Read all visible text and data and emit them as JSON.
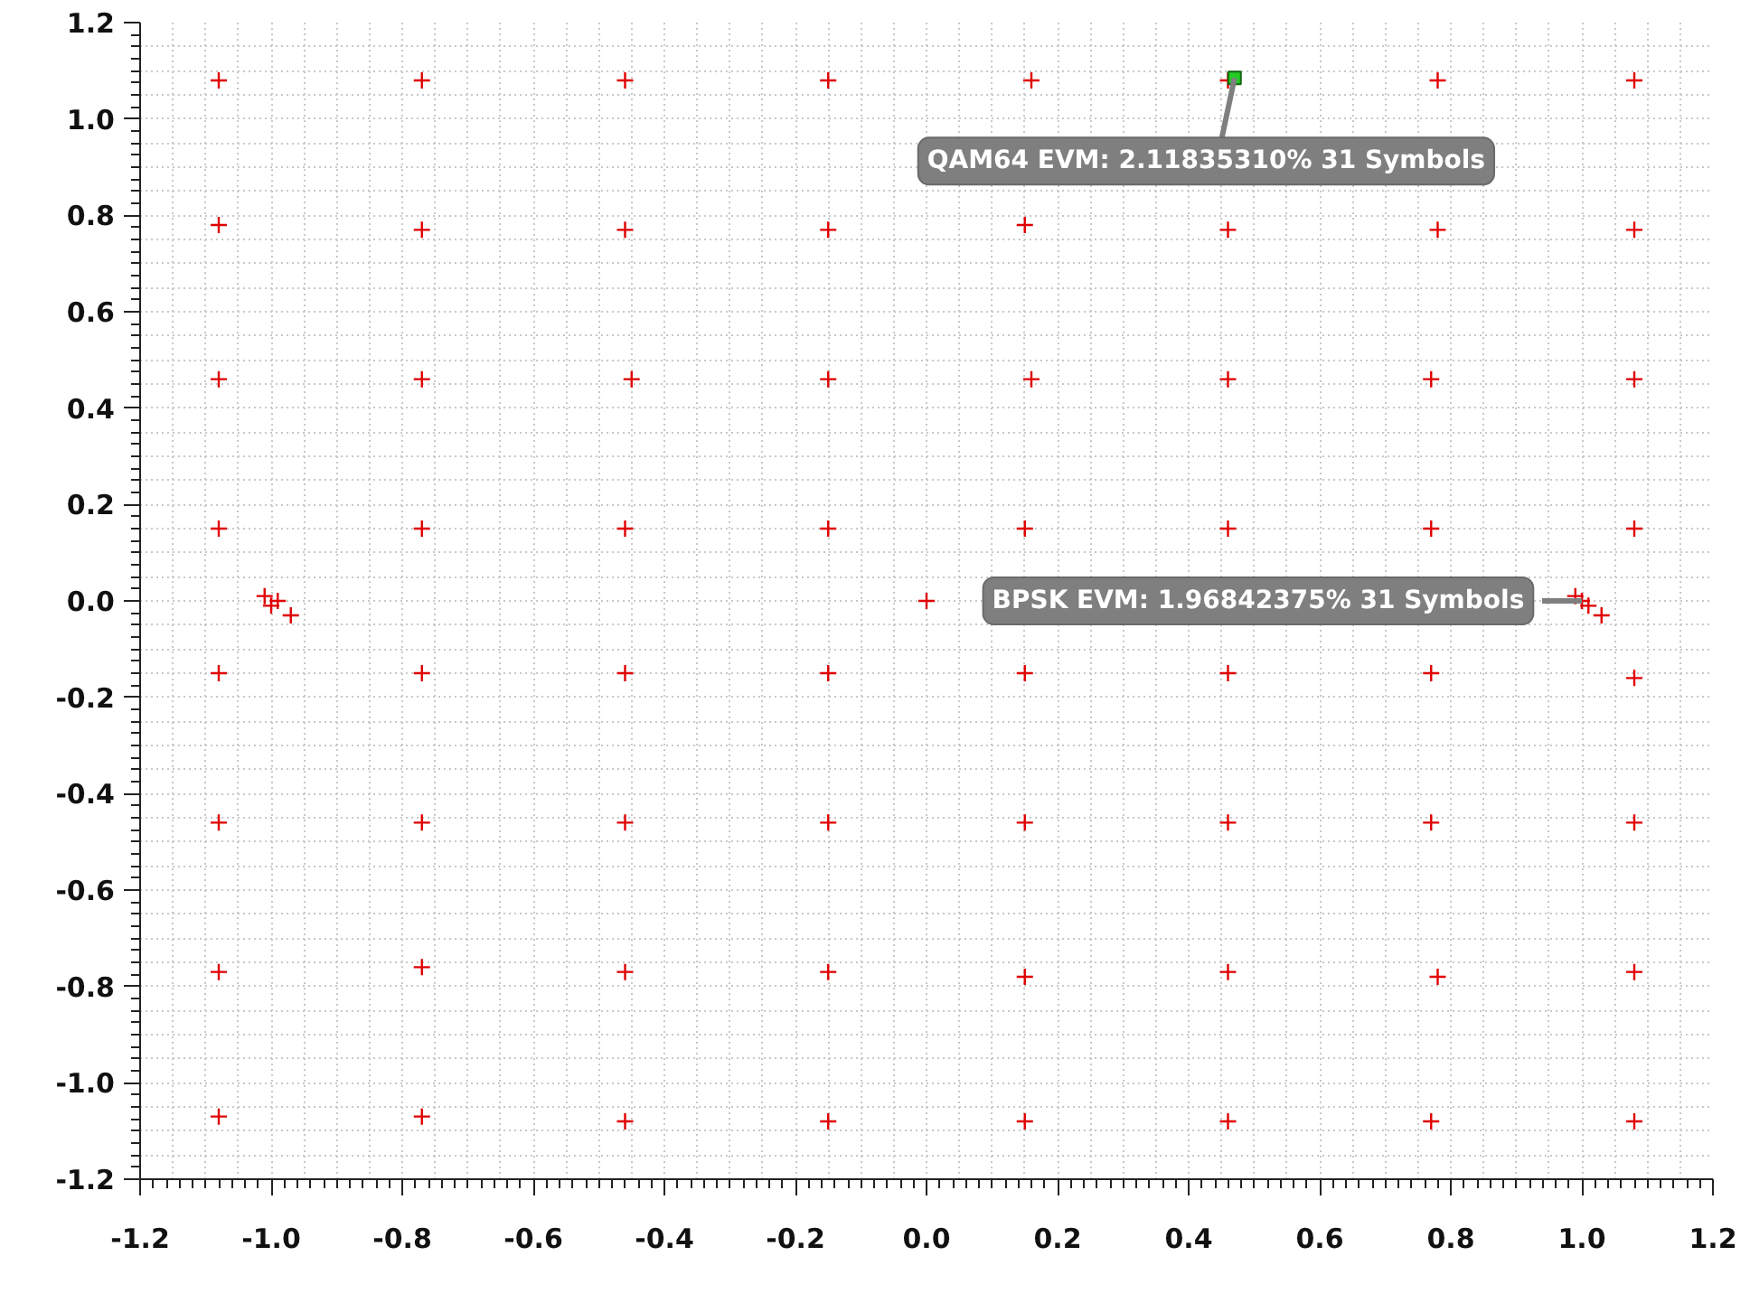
{
  "chart_data": {
    "type": "scatter",
    "xlim": [
      -1.2,
      1.2
    ],
    "ylim": [
      -1.2,
      1.2
    ],
    "xticks": [
      {
        "value": -1.2,
        "label": "-1.2"
      },
      {
        "value": -1.0,
        "label": "-1.0"
      },
      {
        "value": -0.8,
        "label": "-0.8"
      },
      {
        "value": -0.6,
        "label": "-0.6"
      },
      {
        "value": -0.4,
        "label": "-0.4"
      },
      {
        "value": -0.2,
        "label": "-0.2"
      },
      {
        "value": 0,
        "label": "0.0"
      },
      {
        "value": 0.2,
        "label": "0.2"
      },
      {
        "value": 0.4,
        "label": "0.4"
      },
      {
        "value": 0.6,
        "label": "0.6"
      },
      {
        "value": 0.8,
        "label": "0.8"
      },
      {
        "value": 1.0,
        "label": "1.0"
      },
      {
        "value": 1.2,
        "label": "1.2"
      }
    ],
    "yticks": [
      {
        "value": -1.2,
        "label": "-1.2"
      },
      {
        "value": -1.0,
        "label": "-1.0"
      },
      {
        "value": -0.8,
        "label": "-0.8"
      },
      {
        "value": -0.6,
        "label": "-0.6"
      },
      {
        "value": -0.4,
        "label": "-0.4"
      },
      {
        "value": -0.2,
        "label": "-0.2"
      },
      {
        "value": 0,
        "label": "0.0"
      },
      {
        "value": 0.2,
        "label": "0.2"
      },
      {
        "value": 0.4,
        "label": "0.4"
      },
      {
        "value": 0.6,
        "label": "0.6"
      },
      {
        "value": 0.8,
        "label": "0.8"
      },
      {
        "value": 1.0,
        "label": "1.0"
      },
      {
        "value": 1.2,
        "label": "1.2"
      }
    ],
    "grid": true,
    "series": [
      {
        "color": "#e00000",
        "marker": "cross",
        "x": [
          -1.08,
          -0.77,
          -0.46,
          -0.15,
          0.16,
          0.46,
          0.78,
          1.08,
          -1.08,
          -0.77,
          -0.46,
          -0.15,
          0.15,
          0.46,
          0.78,
          1.08,
          -1.08,
          -0.77,
          -0.45,
          -0.15,
          0.16,
          0.46,
          0.77,
          1.08,
          -1.08,
          -0.77,
          -0.46,
          -0.15,
          0.15,
          0.46,
          0.77,
          1.08,
          -1.08,
          -0.77,
          -0.46,
          -0.15,
          0.15,
          0.46,
          0.77,
          1.08,
          -1.08,
          -0.77,
          -0.46,
          -0.15,
          0.15,
          0.46,
          0.77,
          1.08,
          -1.08,
          -0.77,
          -0.46,
          -0.15,
          0.15,
          0.46,
          0.78,
          1.08,
          -1.08,
          -0.77,
          -0.46,
          -0.15,
          0.15,
          0.46,
          0.77,
          1.08
        ],
        "values": [
          1.08,
          1.08,
          1.08,
          1.08,
          1.08,
          1.08,
          1.08,
          1.08,
          0.78,
          0.77,
          0.77,
          0.77,
          0.78,
          0.77,
          0.77,
          0.77,
          0.46,
          0.46,
          0.46,
          0.46,
          0.46,
          0.46,
          0.46,
          0.46,
          0.15,
          0.15,
          0.15,
          0.15,
          0.15,
          0.15,
          0.15,
          0.15,
          -0.15,
          -0.15,
          -0.15,
          -0.15,
          -0.15,
          -0.15,
          -0.15,
          -0.16,
          -0.46,
          -0.46,
          -0.46,
          -0.46,
          -0.46,
          -0.46,
          -0.46,
          -0.46,
          -0.77,
          -0.76,
          -0.77,
          -0.77,
          -0.78,
          -0.77,
          -0.78,
          -0.77,
          -1.07,
          -1.07,
          -1.08,
          -1.08,
          -1.08,
          -1.08,
          -1.08,
          -1.08
        ]
      },
      {
        "color": "#e00000",
        "marker": "cross",
        "x": [
          -1.01,
          -0.99,
          -1.0,
          -0.97,
          0.0,
          0.99,
          1.0,
          1.01,
          1.03
        ],
        "values": [
          0.01,
          0.0,
          -0.01,
          -0.03,
          0.0,
          0.01,
          0.0,
          -0.01,
          -0.03
        ]
      },
      {
        "color": "#22cc22",
        "marker": "square",
        "x": [
          0.47
        ],
        "values": [
          1.085
        ]
      }
    ],
    "annotations": [
      {
        "text": "QAM64 EVM: 2.11835310% 31 Symbols",
        "x": 0.47,
        "y": 1.085
      },
      {
        "text": "BPSK EVM: 1.96842375% 31 Symbols",
        "x": 1.0,
        "y": 0.0
      }
    ]
  }
}
